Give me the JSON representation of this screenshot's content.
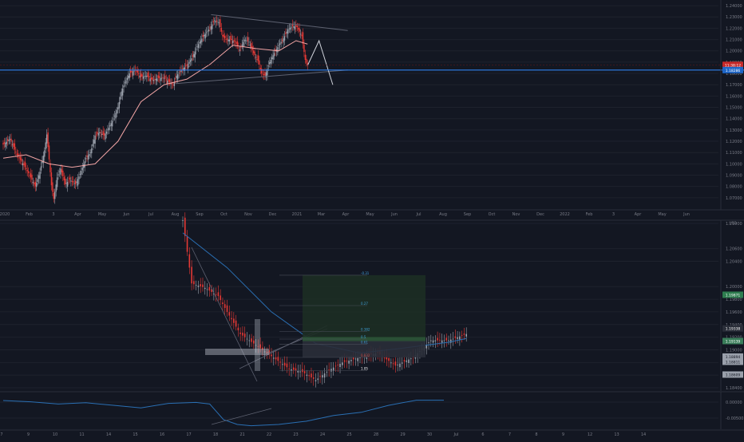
{
  "colors": {
    "background": "#131722",
    "grid": "#1e222d",
    "axis_text": "#787b86",
    "candle_up": "#9aa0ab",
    "candle_down": "#e53935",
    "ma_top": "#f4a6a6",
    "ma_bottom": "#2a6fb3",
    "level_line": "#2f80ed",
    "trend_line": "#5d6170",
    "white_projection": "#d1d4dc",
    "tp_zone": "#1d2d24",
    "sl_zone": "#2a2d38"
  },
  "chart_data": [
    {
      "type": "candlestick",
      "timeframe": "daily",
      "x_tick_labels": [
        "2020",
        "Feb",
        "3",
        "Apr",
        "May",
        "Jun",
        "Jul",
        "Aug",
        "Sep",
        "Oct",
        "Nov",
        "Dec",
        "2021",
        "Mar",
        "Apr",
        "May",
        "Jun",
        "Jul",
        "Aug",
        "Sep",
        "Oct",
        "Nov",
        "Dec",
        "2022",
        "Feb",
        "3",
        "Apr",
        "May",
        "Jun"
      ],
      "y_tick_labels": [
        "1.24000",
        "1.23000",
        "1.22000",
        "1.21000",
        "1.20000",
        "1.19000",
        "1.18000",
        "1.17000",
        "1.16000",
        "1.15000",
        "1.14000",
        "1.13000",
        "1.12000",
        "1.11000",
        "1.10000",
        "1.09000",
        "1.08000",
        "1.07000",
        "1.06000"
      ],
      "ylim": [
        1.06,
        1.245
      ],
      "close_path": [
        [
          0,
          1.117
        ],
        [
          6,
          1.122
        ],
        [
          12,
          1.108
        ],
        [
          18,
          1.099
        ],
        [
          24,
          1.088
        ],
        [
          28,
          1.08
        ],
        [
          32,
          1.093
        ],
        [
          36,
          1.112
        ],
        [
          38,
          1.126
        ],
        [
          40,
          1.104
        ],
        [
          42,
          1.081
        ],
        [
          44,
          1.069
        ],
        [
          47,
          1.088
        ],
        [
          50,
          1.096
        ],
        [
          54,
          1.082
        ],
        [
          58,
          1.086
        ],
        [
          63,
          1.082
        ],
        [
          67,
          1.091
        ],
        [
          72,
          1.105
        ],
        [
          76,
          1.11
        ],
        [
          80,
          1.125
        ],
        [
          84,
          1.128
        ],
        [
          88,
          1.125
        ],
        [
          92,
          1.132
        ],
        [
          96,
          1.14
        ],
        [
          100,
          1.15
        ],
        [
          103,
          1.164
        ],
        [
          106,
          1.172
        ],
        [
          108,
          1.176
        ],
        [
          110,
          1.18
        ],
        [
          115,
          1.183
        ],
        [
          120,
          1.177
        ],
        [
          125,
          1.178
        ],
        [
          130,
          1.174
        ],
        [
          135,
          1.176
        ],
        [
          140,
          1.176
        ],
        [
          145,
          1.172
        ],
        [
          148,
          1.17
        ],
        [
          151,
          1.178
        ],
        [
          155,
          1.183
        ],
        [
          160,
          1.187
        ],
        [
          165,
          1.195
        ],
        [
          170,
          1.206
        ],
        [
          175,
          1.214
        ],
        [
          180,
          1.22
        ],
        [
          184,
          1.227
        ],
        [
          188,
          1.225
        ],
        [
          191,
          1.213
        ],
        [
          194,
          1.21
        ],
        [
          198,
          1.21
        ],
        [
          202,
          1.208
        ],
        [
          206,
          1.201
        ],
        [
          210,
          1.21
        ],
        [
          214,
          1.208
        ],
        [
          218,
          1.198
        ],
        [
          222,
          1.191
        ],
        [
          225,
          1.18
        ],
        [
          228,
          1.178
        ],
        [
          232,
          1.19
        ],
        [
          236,
          1.198
        ],
        [
          240,
          1.205
        ],
        [
          244,
          1.211
        ],
        [
          248,
          1.219
        ],
        [
          252,
          1.222
        ],
        [
          256,
          1.221
        ],
        [
          260,
          1.213
        ],
        [
          263,
          1.192
        ],
        [
          265,
          1.187
        ]
      ],
      "ma_top_path": [
        [
          0,
          1.105
        ],
        [
          20,
          1.108
        ],
        [
          40,
          1.1
        ],
        [
          60,
          1.097
        ],
        [
          80,
          1.1
        ],
        [
          100,
          1.12
        ],
        [
          120,
          1.155
        ],
        [
          140,
          1.17
        ],
        [
          160,
          1.175
        ],
        [
          180,
          1.188
        ],
        [
          200,
          1.205
        ],
        [
          220,
          1.202
        ],
        [
          240,
          1.2
        ],
        [
          255,
          1.209
        ],
        [
          265,
          1.206
        ]
      ],
      "level_price": 1.183,
      "marker_price": 1.1876,
      "price_label_red": "11:38:12",
      "price_label_blue": "1.18286",
      "projection_path": [
        [
          265,
          1.187
        ],
        [
          275,
          1.209
        ],
        [
          287,
          1.17
        ]
      ],
      "triangle_upper": [
        [
          181,
          1.232
        ],
        [
          300,
          1.218
        ]
      ],
      "triangle_lower": [
        [
          150,
          1.171
        ],
        [
          300,
          1.183
        ]
      ]
    },
    {
      "type": "candlestick",
      "timeframe": "hourly",
      "x_tick_labels": [
        "7",
        "9",
        "10",
        "11",
        "14",
        "15",
        "16",
        "17",
        "18",
        "21",
        "22",
        "23",
        "24",
        "25",
        "28",
        "29",
        "30",
        "Jul",
        "6",
        "7",
        "8",
        "9",
        "12",
        "13",
        "14"
      ],
      "y_tick_labels": [
        "1.21000",
        "1.20600",
        "1.20400",
        "1.20000",
        "1.19800",
        "1.19600",
        "1.19400",
        "1.19200",
        "1.19000",
        "1.18800",
        "1.18600",
        "1.18400"
      ],
      "ylim": [
        1.1835,
        1.2105
      ],
      "close_path": [
        [
          0,
          1.2105
        ],
        [
          2,
          1.2005
        ],
        [
          5,
          1.1998
        ],
        [
          8,
          1.1985
        ],
        [
          10,
          1.196
        ],
        [
          13,
          1.1925
        ],
        [
          16,
          1.191
        ],
        [
          20,
          1.189
        ],
        [
          24,
          1.187
        ],
        [
          27,
          1.1865
        ],
        [
          30,
          1.1852
        ],
        [
          33,
          1.1868
        ],
        [
          36,
          1.188
        ],
        [
          40,
          1.1888
        ],
        [
          44,
          1.1895
        ],
        [
          48,
          1.1875
        ],
        [
          52,
          1.1888
        ],
        [
          56,
          1.1915
        ],
        [
          60,
          1.1915
        ],
        [
          64,
          1.1925
        ]
      ],
      "ma_path": [
        [
          0,
          1.2085
        ],
        [
          10,
          1.203
        ],
        [
          20,
          1.196
        ],
        [
          30,
          1.191
        ],
        [
          40,
          1.1895
        ],
        [
          50,
          1.1903
        ],
        [
          60,
          1.1912
        ],
        [
          64,
          1.1918
        ]
      ],
      "fib_labels": [
        {
          "text": "-0.31",
          "price": 1.2018
        },
        {
          "text": "0.27",
          "price": 1.197
        },
        {
          "text": "0.382",
          "price": 1.1929
        },
        {
          "text": "0.5",
          "price": 1.1917
        },
        {
          "text": "0.61",
          "price": 1.1909
        },
        {
          "text": "0.832",
          "price": 1.1888
        },
        {
          "text": "1.05",
          "price": 1.1867
        }
      ],
      "price_labels": [
        {
          "text": "1.19871",
          "price": 1.19871,
          "kind": "tp"
        },
        {
          "text": "1.19338",
          "price": 1.19338,
          "kind": "dark"
        },
        {
          "text": "1.19139",
          "price": 1.19139,
          "kind": "entry"
        },
        {
          "text": "1.18894",
          "price": 1.18894,
          "kind": "grey"
        },
        {
          "text": "1.18811",
          "price": 1.18811,
          "kind": "grey"
        },
        {
          "text": "1.18609",
          "price": 1.18609,
          "kind": "grey"
        }
      ],
      "scale_label": "USD"
    },
    {
      "type": "line",
      "indicator": "oscillator",
      "y_tick_labels": [
        "0.00000",
        "-0.00500"
      ],
      "ylim": [
        -0.0085,
        0.003
      ],
      "path": [
        [
          0,
          0.0005
        ],
        [
          4,
          0.0001
        ],
        [
          8,
          -0.0006
        ],
        [
          12,
          -0.0002
        ],
        [
          16,
          -0.001
        ],
        [
          20,
          -0.0018
        ],
        [
          24,
          -0.0004
        ],
        [
          28,
          -0.0001
        ],
        [
          30,
          -0.0006
        ],
        [
          32,
          -0.0055
        ],
        [
          34,
          -0.007
        ],
        [
          36,
          -0.0074
        ],
        [
          40,
          -0.007
        ],
        [
          44,
          -0.006
        ],
        [
          48,
          -0.0042
        ],
        [
          52,
          -0.0032
        ],
        [
          56,
          -0.001
        ],
        [
          60,
          0.0006
        ],
        [
          64,
          0.0006
        ]
      ]
    }
  ]
}
